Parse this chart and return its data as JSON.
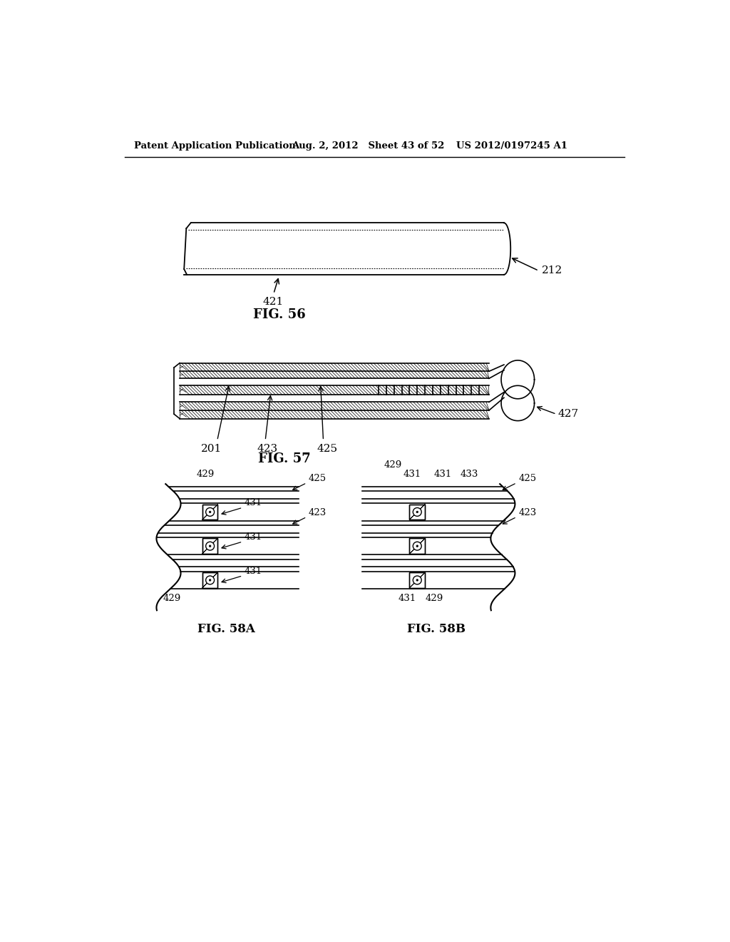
{
  "background_color": "#ffffff",
  "header_left": "Patent Application Publication",
  "header_mid": "Aug. 2, 2012   Sheet 43 of 52",
  "header_right": "US 2012/0197245 A1",
  "fig56_label": "FIG. 56",
  "fig57_label": "FIG. 57",
  "fig58a_label": "FIG. 58A",
  "fig58b_label": "FIG. 58B",
  "label_212": "212",
  "label_421": "421",
  "label_201": "201",
  "label_423": "423",
  "label_425": "425",
  "label_427": "427",
  "label_429": "429",
  "label_431": "431",
  "label_433": "433"
}
